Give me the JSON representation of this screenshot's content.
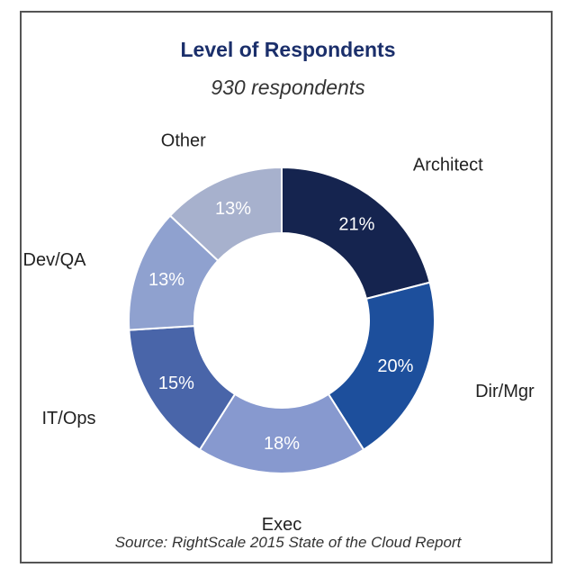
{
  "chart_data": {
    "type": "pie",
    "title": "Level of Respondents",
    "subtitle": "930 respondents",
    "source": "Source: RightScale 2015 State of the Cloud Report",
    "donut": true,
    "slices": [
      {
        "label": "Architect",
        "value": 21,
        "display": "21%",
        "color": "#15244f"
      },
      {
        "label": "Dir/Mgr",
        "value": 20,
        "display": "20%",
        "color": "#1d4f9c"
      },
      {
        "label": "Exec",
        "value": 18,
        "display": "18%",
        "color": "#8799cf"
      },
      {
        "label": "IT/Ops",
        "value": 15,
        "display": "15%",
        "color": "#4965a9"
      },
      {
        "label": "Dev/QA",
        "value": 13,
        "display": "13%",
        "color": "#8fa1cf"
      },
      {
        "label": "Other",
        "value": 13,
        "display": "13%",
        "color": "#a7b1cd"
      }
    ]
  }
}
